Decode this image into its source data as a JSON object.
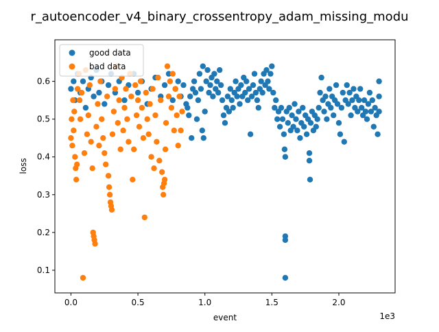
{
  "chart_data": {
    "type": "scatter",
    "title": "r_autoencoder_v4_binary_crossentropy_adam_missing_modu",
    "xlabel": "event",
    "ylabel": "loss",
    "x_offset_label": "1e3",
    "xlim": [
      -0.12,
      2.42
    ],
    "ylim": [
      0.04,
      0.71
    ],
    "x_ticks": [
      0.0,
      0.5,
      1.0,
      1.5,
      2.0
    ],
    "x_tick_labels": [
      "0.0",
      "0.5",
      "1.0",
      "1.5",
      "2.0"
    ],
    "y_ticks": [
      0.1,
      0.2,
      0.3,
      0.4,
      0.5,
      0.6
    ],
    "y_tick_labels": [
      "0.1",
      "0.2",
      "0.3",
      "0.4",
      "0.5",
      "0.6"
    ],
    "grid": false,
    "legend_position": "top-left",
    "colors": {
      "good data": "#1f77b4",
      "bad data": "#ff7f0e"
    },
    "series": [
      {
        "name": "good data",
        "points": [
          [
            0.0,
            0.58
          ],
          [
            0.02,
            0.6
          ],
          [
            0.03,
            0.55
          ],
          [
            0.05,
            0.62
          ],
          [
            0.07,
            0.57
          ],
          [
            0.09,
            0.6
          ],
          [
            0.11,
            0.53
          ],
          [
            0.13,
            0.58
          ],
          [
            0.15,
            0.61
          ],
          [
            0.17,
            0.56
          ],
          [
            0.19,
            0.63
          ],
          [
            0.21,
            0.57
          ],
          [
            0.23,
            0.6
          ],
          [
            0.25,
            0.54
          ],
          [
            0.28,
            0.59
          ],
          [
            0.3,
            0.62
          ],
          [
            0.33,
            0.57
          ],
          [
            0.36,
            0.6
          ],
          [
            0.4,
            0.55
          ],
          [
            0.43,
            0.59
          ],
          [
            0.47,
            0.62
          ],
          [
            0.5,
            0.57
          ],
          [
            0.53,
            0.6
          ],
          [
            0.57,
            0.54
          ],
          [
            0.6,
            0.58
          ],
          [
            0.63,
            0.61
          ],
          [
            0.67,
            0.56
          ],
          [
            0.7,
            0.59
          ],
          [
            0.73,
            0.62
          ],
          [
            0.76,
            0.55
          ],
          [
            0.78,
            0.58
          ],
          [
            0.8,
            0.6
          ],
          [
            0.82,
            0.56
          ],
          [
            0.84,
            0.59
          ],
          [
            0.86,
            0.54
          ],
          [
            0.87,
            0.53
          ],
          [
            0.88,
            0.51
          ],
          [
            0.89,
            0.56
          ],
          [
            0.9,
            0.45
          ],
          [
            0.91,
            0.58
          ],
          [
            0.92,
            0.6
          ],
          [
            0.93,
            0.57
          ],
          [
            0.94,
            0.5
          ],
          [
            0.95,
            0.55
          ],
          [
            0.96,
            0.62
          ],
          [
            0.97,
            0.58
          ],
          [
            0.98,
            0.47
          ],
          [
            0.985,
            0.64
          ],
          [
            0.99,
            0.45
          ],
          [
            1.0,
            0.52
          ],
          [
            1.01,
            0.6
          ],
          [
            1.02,
            0.63
          ],
          [
            1.03,
            0.57
          ],
          [
            1.04,
            0.59
          ],
          [
            1.05,
            0.61
          ],
          [
            1.06,
            0.56
          ],
          [
            1.07,
            0.62
          ],
          [
            1.08,
            0.58
          ],
          [
            1.09,
            0.6
          ],
          [
            1.1,
            0.57
          ],
          [
            1.11,
            0.63
          ],
          [
            1.12,
            0.59
          ],
          [
            1.13,
            0.55
          ],
          [
            1.14,
            0.51
          ],
          [
            1.15,
            0.49
          ],
          [
            1.16,
            0.53
          ],
          [
            1.17,
            0.56
          ],
          [
            1.18,
            0.52
          ],
          [
            1.19,
            0.58
          ],
          [
            1.2,
            0.55
          ],
          [
            1.21,
            0.53
          ],
          [
            1.22,
            0.57
          ],
          [
            1.23,
            0.6
          ],
          [
            1.24,
            0.56
          ],
          [
            1.25,
            0.58
          ],
          [
            1.26,
            0.54
          ],
          [
            1.27,
            0.59
          ],
          [
            1.28,
            0.56
          ],
          [
            1.29,
            0.61
          ],
          [
            1.3,
            0.57
          ],
          [
            1.31,
            0.6
          ],
          [
            1.32,
            0.55
          ],
          [
            1.33,
            0.58
          ],
          [
            1.34,
            0.46
          ],
          [
            1.35,
            0.56
          ],
          [
            1.36,
            0.59
          ],
          [
            1.37,
            0.62
          ],
          [
            1.38,
            0.57
          ],
          [
            1.39,
            0.55
          ],
          [
            1.4,
            0.53
          ],
          [
            1.41,
            0.58
          ],
          [
            1.42,
            0.6
          ],
          [
            1.43,
            0.57
          ],
          [
            1.44,
            0.62
          ],
          [
            1.45,
            0.59
          ],
          [
            1.46,
            0.63
          ],
          [
            1.47,
            0.6
          ],
          [
            1.48,
            0.58
          ],
          [
            1.49,
            0.62
          ],
          [
            1.5,
            0.64
          ],
          [
            1.51,
            0.57
          ],
          [
            1.52,
            0.53
          ],
          [
            1.53,
            0.55
          ],
          [
            1.54,
            0.5
          ],
          [
            1.55,
            0.52
          ],
          [
            1.56,
            0.48
          ],
          [
            1.57,
            0.53
          ],
          [
            1.58,
            0.5
          ],
          [
            1.59,
            0.46
          ],
          [
            1.595,
            0.42
          ],
          [
            1.6,
            0.4
          ],
          [
            1.6,
            0.19
          ],
          [
            1.6,
            0.18
          ],
          [
            1.6,
            0.08
          ],
          [
            1.61,
            0.52
          ],
          [
            1.62,
            0.49
          ],
          [
            1.63,
            0.53
          ],
          [
            1.64,
            0.47
          ],
          [
            1.65,
            0.51
          ],
          [
            1.66,
            0.48
          ],
          [
            1.67,
            0.54
          ],
          [
            1.68,
            0.5
          ],
          [
            1.69,
            0.47
          ],
          [
            1.7,
            0.52
          ],
          [
            1.71,
            0.45
          ],
          [
            1.72,
            0.49
          ],
          [
            1.73,
            0.53
          ],
          [
            1.74,
            0.48
          ],
          [
            1.75,
            0.51
          ],
          [
            1.76,
            0.46
          ],
          [
            1.77,
            0.5
          ],
          [
            1.78,
            0.41
          ],
          [
            1.78,
            0.39
          ],
          [
            1.785,
            0.34
          ],
          [
            1.79,
            0.49
          ],
          [
            1.8,
            0.52
          ],
          [
            1.81,
            0.47
          ],
          [
            1.82,
            0.51
          ],
          [
            1.83,
            0.48
          ],
          [
            1.84,
            0.5
          ],
          [
            1.85,
            0.53
          ],
          [
            1.86,
            0.57
          ],
          [
            1.87,
            0.61
          ],
          [
            1.88,
            0.55
          ],
          [
            1.89,
            0.52
          ],
          [
            1.9,
            0.56
          ],
          [
            1.91,
            0.5
          ],
          [
            1.92,
            0.54
          ],
          [
            1.93,
            0.58
          ],
          [
            1.94,
            0.53
          ],
          [
            1.95,
            0.56
          ],
          [
            1.96,
            0.51
          ],
          [
            1.97,
            0.55
          ],
          [
            1.98,
            0.59
          ],
          [
            1.99,
            0.54
          ],
          [
            2.0,
            0.49
          ],
          [
            2.01,
            0.46
          ],
          [
            2.02,
            0.53
          ],
          [
            2.03,
            0.57
          ],
          [
            2.04,
            0.44
          ],
          [
            2.05,
            0.55
          ],
          [
            2.06,
            0.59
          ],
          [
            2.07,
            0.54
          ],
          [
            2.08,
            0.57
          ],
          [
            2.09,
            0.51
          ],
          [
            2.1,
            0.55
          ],
          [
            2.11,
            0.58
          ],
          [
            2.12,
            0.53
          ],
          [
            2.13,
            0.56
          ],
          [
            2.14,
            0.52
          ],
          [
            2.15,
            0.55
          ],
          [
            2.16,
            0.58
          ],
          [
            2.17,
            0.53
          ],
          [
            2.18,
            0.51
          ],
          [
            2.19,
            0.55
          ],
          [
            2.2,
            0.52
          ],
          [
            2.21,
            0.5
          ],
          [
            2.22,
            0.54
          ],
          [
            2.23,
            0.57
          ],
          [
            2.24,
            0.52
          ],
          [
            2.25,
            0.55
          ],
          [
            2.26,
            0.48
          ],
          [
            2.27,
            0.53
          ],
          [
            2.28,
            0.51
          ],
          [
            2.29,
            0.46
          ],
          [
            2.3,
            0.56
          ],
          [
            2.3,
            0.6
          ],
          [
            2.3,
            0.52
          ]
        ]
      },
      {
        "name": "bad data",
        "points": [
          [
            0.0,
            0.45
          ],
          [
            0.005,
            0.5
          ],
          [
            0.01,
            0.43
          ],
          [
            0.015,
            0.55
          ],
          [
            0.02,
            0.47
          ],
          [
            0.025,
            0.52
          ],
          [
            0.03,
            0.4
          ],
          [
            0.035,
            0.37
          ],
          [
            0.04,
            0.34
          ],
          [
            0.045,
            0.38
          ],
          [
            0.05,
            0.58
          ],
          [
            0.06,
            0.62
          ],
          [
            0.065,
            0.55
          ],
          [
            0.07,
            0.5
          ],
          [
            0.08,
            0.57
          ],
          [
            0.09,
            0.08
          ],
          [
            0.1,
            0.41
          ],
          [
            0.11,
            0.63
          ],
          [
            0.12,
            0.46
          ],
          [
            0.13,
            0.51
          ],
          [
            0.14,
            0.59
          ],
          [
            0.15,
            0.44
          ],
          [
            0.16,
            0.37
          ],
          [
            0.165,
            0.2
          ],
          [
            0.17,
            0.19
          ],
          [
            0.175,
            0.18
          ],
          [
            0.18,
            0.17
          ],
          [
            0.19,
            0.48
          ],
          [
            0.2,
            0.54
          ],
          [
            0.21,
            0.43
          ],
          [
            0.22,
            0.6
          ],
          [
            0.23,
            0.5
          ],
          [
            0.24,
            0.45
          ],
          [
            0.25,
            0.41
          ],
          [
            0.26,
            0.38
          ],
          [
            0.27,
            0.56
          ],
          [
            0.28,
            0.35
          ],
          [
            0.285,
            0.32
          ],
          [
            0.29,
            0.3
          ],
          [
            0.295,
            0.28
          ],
          [
            0.3,
            0.27
          ],
          [
            0.305,
            0.26
          ],
          [
            0.31,
            0.46
          ],
          [
            0.32,
            0.52
          ],
          [
            0.33,
            0.58
          ],
          [
            0.34,
            0.64
          ],
          [
            0.35,
            0.49
          ],
          [
            0.36,
            0.55
          ],
          [
            0.37,
            0.42
          ],
          [
            0.38,
            0.61
          ],
          [
            0.39,
            0.47
          ],
          [
            0.4,
            0.53
          ],
          [
            0.41,
            0.58
          ],
          [
            0.42,
            0.5
          ],
          [
            0.43,
            0.44
          ],
          [
            0.44,
            0.62
          ],
          [
            0.45,
            0.56
          ],
          [
            0.46,
            0.34
          ],
          [
            0.47,
            0.42
          ],
          [
            0.48,
            0.59
          ],
          [
            0.49,
            0.51
          ],
          [
            0.5,
            0.55
          ],
          [
            0.51,
            0.48
          ],
          [
            0.52,
            0.6
          ],
          [
            0.53,
            0.53
          ],
          [
            0.54,
            0.45
          ],
          [
            0.55,
            0.24
          ],
          [
            0.56,
            0.57
          ],
          [
            0.57,
            0.5
          ],
          [
            0.58,
            0.46
          ],
          [
            0.59,
            0.54
          ],
          [
            0.6,
            0.4
          ],
          [
            0.61,
            0.58
          ],
          [
            0.62,
            0.37
          ],
          [
            0.63,
            0.51
          ],
          [
            0.64,
            0.44
          ],
          [
            0.65,
            0.61
          ],
          [
            0.66,
            0.39
          ],
          [
            0.67,
            0.55
          ],
          [
            0.68,
            0.36
          ],
          [
            0.685,
            0.32
          ],
          [
            0.69,
            0.3
          ],
          [
            0.695,
            0.33
          ],
          [
            0.7,
            0.34
          ],
          [
            0.705,
            0.42
          ],
          [
            0.71,
            0.49
          ],
          [
            0.72,
            0.64
          ],
          [
            0.73,
            0.56
          ],
          [
            0.74,
            0.6
          ],
          [
            0.75,
            0.53
          ],
          [
            0.76,
            0.62
          ],
          [
            0.77,
            0.47
          ],
          [
            0.78,
            0.58
          ],
          [
            0.79,
            0.51
          ],
          [
            0.8,
            0.43
          ],
          [
            0.81,
            0.56
          ],
          [
            0.82,
            0.47
          ],
          [
            0.83,
            0.52
          ]
        ]
      }
    ]
  }
}
